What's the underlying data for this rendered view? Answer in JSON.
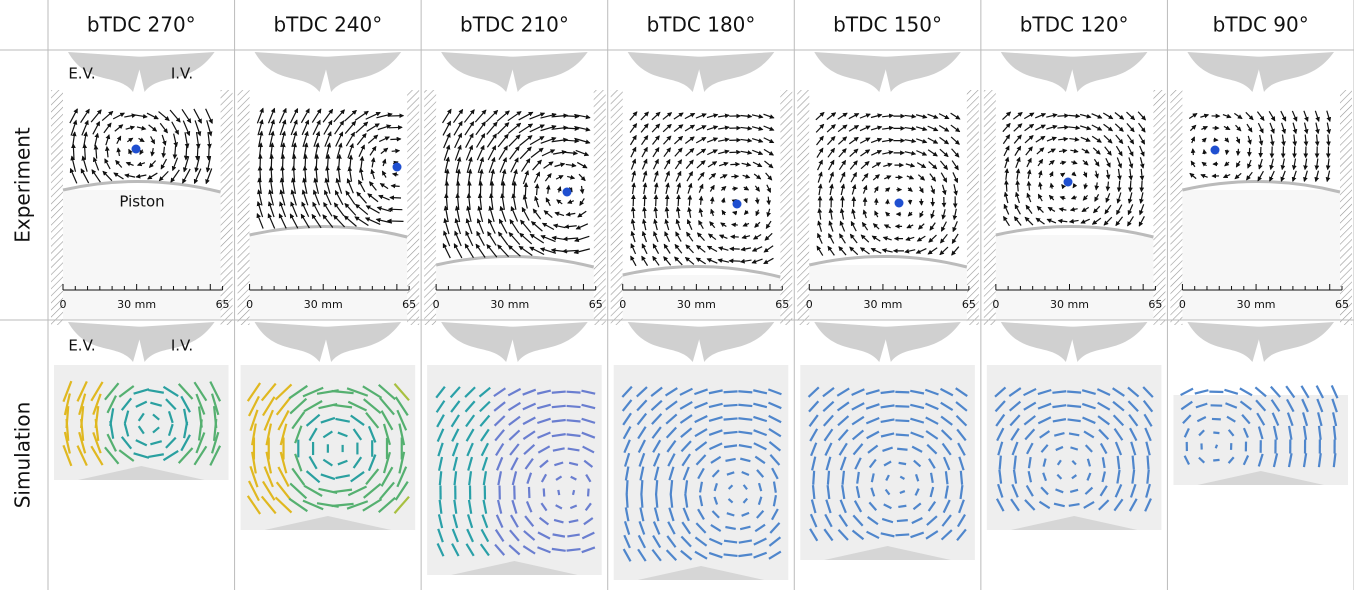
{
  "columns": [
    "bTDC 270°",
    "bTDC 240°",
    "bTDC 210°",
    "bTDC 180°",
    "bTDC 150°",
    "bTDC 120°",
    "bTDC 90°"
  ],
  "rows": [
    "Experiment",
    "Simulation"
  ],
  "axis_labels": {
    "start": "0",
    "middle": "30 mm",
    "end": "65"
  },
  "annotations": {
    "exhaust_valve": "E.V.",
    "intake_valve": "I.V.",
    "piston": "Piston"
  }
}
